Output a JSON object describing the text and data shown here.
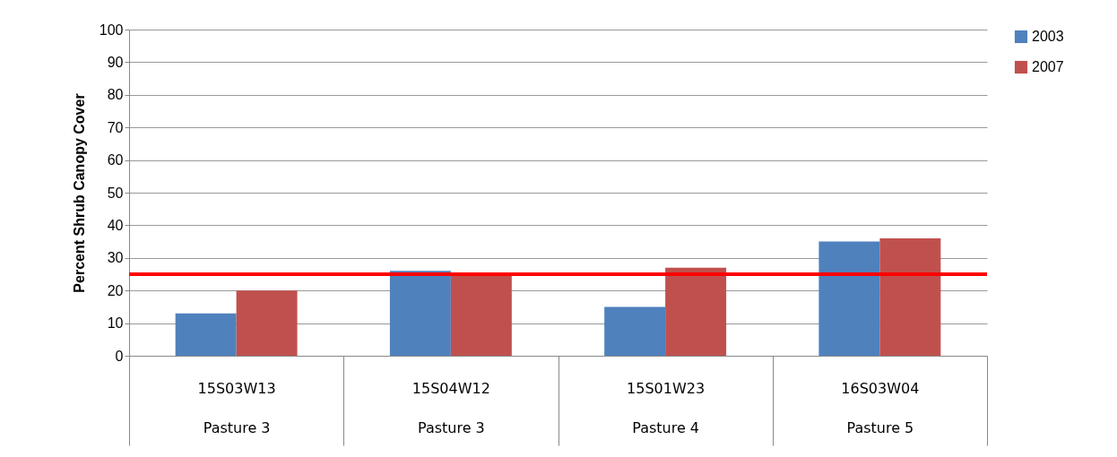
{
  "chart_data": {
    "type": "bar",
    "ylabel": "Percent Shrub Canopy Cover",
    "categories": [
      "15S03W13\nPasture 3",
      "15S04W12\nPasture 3",
      "15S01W23\nPasture 4",
      "16S03W04\nPasture 5"
    ],
    "series": [
      {
        "name": "2003",
        "color": "#4f81bd",
        "values": [
          13,
          26,
          15,
          35
        ]
      },
      {
        "name": "2007",
        "color": "#c0504d",
        "values": [
          20,
          25,
          27,
          36
        ]
      }
    ],
    "ylim": [
      0,
      100
    ],
    "yticks": [
      0,
      10,
      20,
      30,
      40,
      50,
      60,
      70,
      80,
      90,
      100
    ],
    "grid": "y",
    "legend": "right",
    "ref_lines": [
      {
        "axis": "y",
        "value": 25,
        "color": "#ff0000"
      }
    ]
  }
}
